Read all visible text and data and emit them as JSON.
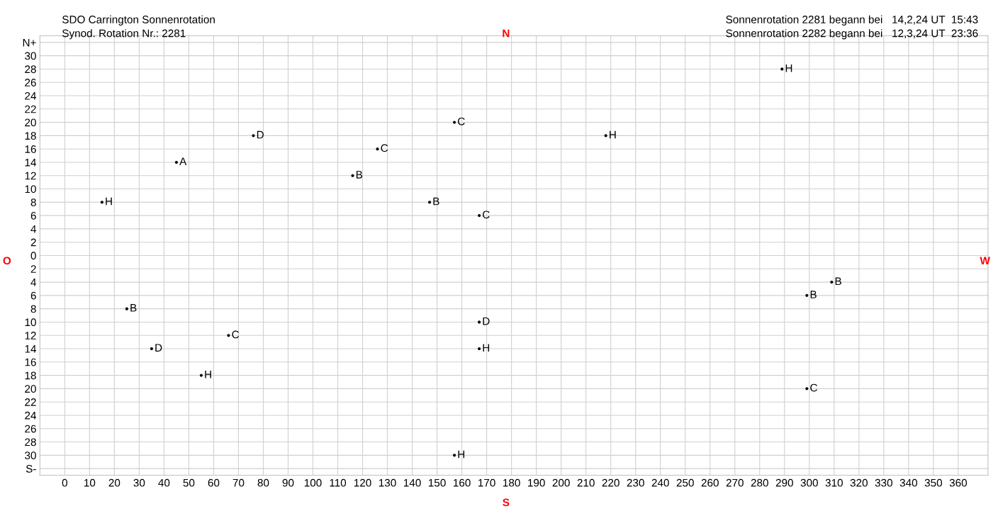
{
  "chart_data": {
    "type": "scatter",
    "title": "SDO Carrington Sonnenrotation",
    "subtitle": "Synod. Rotation Nr.: 2281",
    "annotations": [
      "Sonnenrotation 2281 begann bei   14,2,24 UT  15:43",
      "Sonnenrotation 2282 begann bei   12,3,24 UT  23:36",
      "N",
      "S",
      "O",
      "W"
    ],
    "x": [
      15,
      45,
      76,
      116,
      126,
      147,
      157,
      167,
      218,
      289,
      309,
      299,
      25,
      167,
      66,
      35,
      167,
      55,
      299,
      157
    ],
    "values": [
      8,
      14,
      18,
      12,
      16,
      8,
      20,
      6,
      18,
      28,
      -4,
      -6,
      -8,
      -10,
      -12,
      -14,
      -14,
      -18,
      -20,
      -30
    ],
    "value_labels": [
      "H",
      "A",
      "D",
      "B",
      "C",
      "B",
      "C",
      "C",
      "H",
      "H",
      "B",
      "B",
      "B",
      "D",
      "C",
      "D",
      "H",
      "H",
      "C",
      "H"
    ],
    "color": "#000000",
    "marker": "circle",
    "grid": true,
    "xlim": [
      -10,
      372
    ],
    "xticks": [
      0,
      10,
      20,
      30,
      40,
      50,
      60,
      70,
      80,
      90,
      100,
      110,
      120,
      130,
      140,
      150,
      160,
      170,
      180,
      190,
      200,
      210,
      220,
      230,
      240,
      250,
      260,
      270,
      280,
      290,
      300,
      310,
      320,
      330,
      340,
      350,
      360
    ],
    "ylim": [
      -33,
      33
    ],
    "yticks": [
      {
        "value": 32,
        "label": "N+"
      },
      30,
      28,
      26,
      24,
      22,
      20,
      18,
      16,
      14,
      12,
      10,
      8,
      6,
      4,
      2,
      0,
      {
        "value": -2,
        "label": "2"
      },
      {
        "value": -4,
        "label": "4"
      },
      {
        "value": -6,
        "label": "6"
      },
      {
        "value": -8,
        "label": "8"
      },
      {
        "value": -10,
        "label": "10"
      },
      {
        "value": -12,
        "label": "12"
      },
      {
        "value": -14,
        "label": "14"
      },
      {
        "value": -16,
        "label": "16"
      },
      {
        "value": -18,
        "label": "18"
      },
      {
        "value": -20,
        "label": "20"
      },
      {
        "value": -22,
        "label": "22"
      },
      {
        "value": -24,
        "label": "24"
      },
      {
        "value": -26,
        "label": "26"
      },
      {
        "value": -28,
        "label": "28"
      },
      {
        "value": -30,
        "label": "30"
      },
      {
        "value": -32,
        "label": "S-"
      }
    ]
  }
}
